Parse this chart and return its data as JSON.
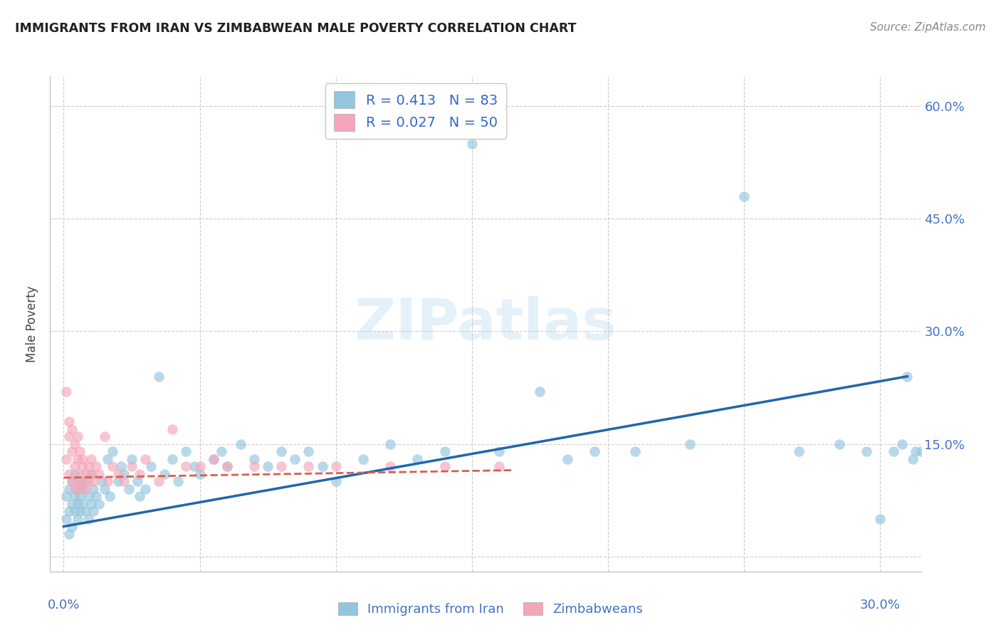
{
  "title": "IMMIGRANTS FROM IRAN VS ZIMBABWEAN MALE POVERTY CORRELATION CHART",
  "source": "Source: ZipAtlas.com",
  "ylabel": "Male Poverty",
  "R_blue": 0.413,
  "N_blue": 83,
  "R_pink": 0.027,
  "N_pink": 50,
  "blue_color": "#92c5de",
  "pink_color": "#f4a7b9",
  "line_blue": "#2166ac",
  "line_pink": "#d6604d",
  "xlim": [
    -0.005,
    0.315
  ],
  "ylim": [
    -0.02,
    0.64
  ],
  "xtick_positions": [
    0.0,
    0.05,
    0.1,
    0.15,
    0.2,
    0.25,
    0.3
  ],
  "ytick_positions": [
    0.0,
    0.15,
    0.3,
    0.45,
    0.6
  ],
  "legend_blue_label": "Immigrants from Iran",
  "legend_pink_label": "Zimbabweans",
  "blue_line_x0": 0.0,
  "blue_line_y0": 0.04,
  "blue_line_x1": 0.31,
  "blue_line_y1": 0.24,
  "pink_line_x0": 0.0,
  "pink_line_y0": 0.105,
  "pink_line_x1": 0.165,
  "pink_line_y1": 0.115,
  "blue_pts_x": [
    0.001,
    0.001,
    0.002,
    0.002,
    0.002,
    0.003,
    0.003,
    0.003,
    0.004,
    0.004,
    0.004,
    0.005,
    0.005,
    0.005,
    0.006,
    0.006,
    0.006,
    0.007,
    0.007,
    0.008,
    0.008,
    0.009,
    0.009,
    0.01,
    0.01,
    0.011,
    0.011,
    0.012,
    0.013,
    0.014,
    0.015,
    0.016,
    0.017,
    0.018,
    0.02,
    0.021,
    0.022,
    0.024,
    0.025,
    0.027,
    0.028,
    0.03,
    0.032,
    0.035,
    0.037,
    0.04,
    0.042,
    0.045,
    0.048,
    0.05,
    0.055,
    0.058,
    0.06,
    0.065,
    0.07,
    0.075,
    0.08,
    0.085,
    0.09,
    0.095,
    0.1,
    0.11,
    0.12,
    0.13,
    0.14,
    0.15,
    0.16,
    0.175,
    0.185,
    0.195,
    0.21,
    0.23,
    0.25,
    0.27,
    0.285,
    0.295,
    0.3,
    0.305,
    0.308,
    0.31,
    0.312,
    0.313,
    0.315
  ],
  "blue_pts_y": [
    0.05,
    0.08,
    0.06,
    0.09,
    0.03,
    0.07,
    0.1,
    0.04,
    0.08,
    0.06,
    0.11,
    0.05,
    0.09,
    0.07,
    0.08,
    0.06,
    0.1,
    0.07,
    0.09,
    0.06,
    0.1,
    0.05,
    0.08,
    0.07,
    0.11,
    0.06,
    0.09,
    0.08,
    0.07,
    0.1,
    0.09,
    0.13,
    0.08,
    0.14,
    0.1,
    0.12,
    0.11,
    0.09,
    0.13,
    0.1,
    0.08,
    0.09,
    0.12,
    0.24,
    0.11,
    0.13,
    0.1,
    0.14,
    0.12,
    0.11,
    0.13,
    0.14,
    0.12,
    0.15,
    0.13,
    0.12,
    0.14,
    0.13,
    0.14,
    0.12,
    0.1,
    0.13,
    0.15,
    0.13,
    0.14,
    0.55,
    0.14,
    0.22,
    0.13,
    0.14,
    0.14,
    0.15,
    0.48,
    0.14,
    0.15,
    0.14,
    0.05,
    0.14,
    0.15,
    0.24,
    0.13,
    0.14,
    0.14
  ],
  "pink_pts_x": [
    0.001,
    0.001,
    0.002,
    0.002,
    0.002,
    0.003,
    0.003,
    0.003,
    0.004,
    0.004,
    0.004,
    0.005,
    0.005,
    0.005,
    0.006,
    0.006,
    0.006,
    0.007,
    0.007,
    0.007,
    0.008,
    0.008,
    0.009,
    0.009,
    0.01,
    0.01,
    0.011,
    0.012,
    0.013,
    0.015,
    0.016,
    0.018,
    0.02,
    0.022,
    0.025,
    0.028,
    0.03,
    0.035,
    0.04,
    0.045,
    0.05,
    0.055,
    0.06,
    0.07,
    0.08,
    0.09,
    0.1,
    0.12,
    0.14,
    0.16
  ],
  "pink_pts_y": [
    0.22,
    0.13,
    0.16,
    0.11,
    0.18,
    0.14,
    0.1,
    0.17,
    0.12,
    0.09,
    0.15,
    0.13,
    0.1,
    0.16,
    0.11,
    0.14,
    0.09,
    0.12,
    0.1,
    0.13,
    0.11,
    0.09,
    0.12,
    0.1,
    0.11,
    0.13,
    0.1,
    0.12,
    0.11,
    0.16,
    0.1,
    0.12,
    0.11,
    0.1,
    0.12,
    0.11,
    0.13,
    0.1,
    0.17,
    0.12,
    0.12,
    0.13,
    0.12,
    0.12,
    0.12,
    0.12,
    0.12,
    0.12,
    0.12,
    0.12
  ]
}
